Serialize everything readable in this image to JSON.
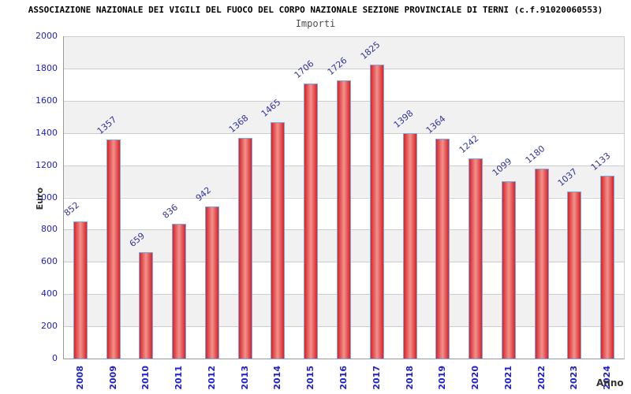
{
  "header": {
    "title": "ASSOCIAZIONE NAZIONALE DEI VIGILI DEL FUOCO DEL CORPO NAZIONALE SEZIONE PROVINCIALE DI TERNI (c.f.91020060553)",
    "subtitle": "Importi"
  },
  "chart_data": {
    "type": "bar",
    "title": "Importi",
    "xlabel": "Anno",
    "ylabel": "Euro",
    "categories": [
      "2008",
      "2009",
      "2010",
      "2011",
      "2012",
      "2013",
      "2014",
      "2015",
      "2016",
      "2017",
      "2018",
      "2019",
      "2020",
      "2021",
      "2022",
      "2023",
      "2024"
    ],
    "values": [
      852,
      1357,
      659,
      836,
      942,
      1368,
      1465,
      1706,
      1726,
      1825,
      1398,
      1364,
      1242,
      1099,
      1180,
      1037,
      1133
    ],
    "ylim": [
      0,
      2000
    ],
    "ytick_step": 200,
    "grid": true,
    "legend_position": "none",
    "colors": {
      "bar_edge": "#dc2127",
      "bar_center": "#f0938d",
      "bar_border": "#73ace2",
      "value_label": "#333399",
      "axis_tick": "#2020cc",
      "band": "#f1f1f1",
      "gridline": "#cccccc",
      "frame": "#999999",
      "title": "#000000",
      "subtitle": "#4d4d4d",
      "axis_title": "#333333"
    }
  }
}
